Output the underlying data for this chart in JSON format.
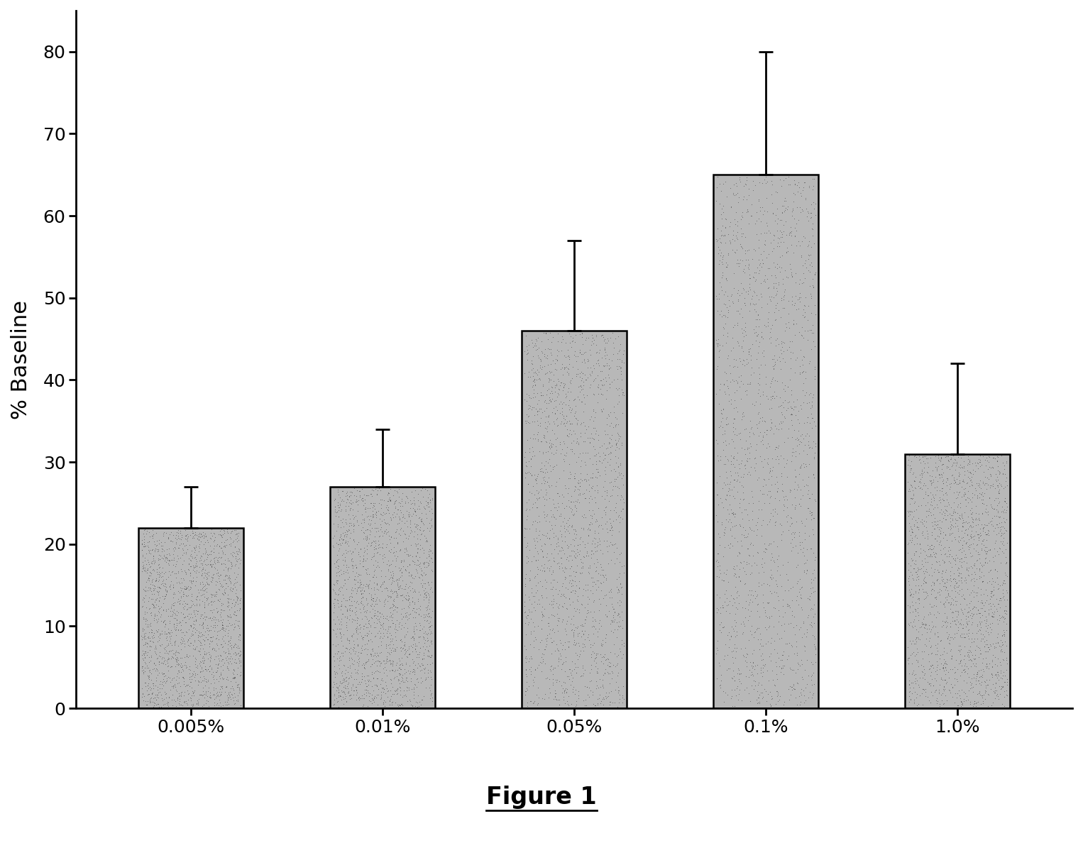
{
  "categories": [
    "0.005%",
    "0.01%",
    "0.05%",
    "0.1%",
    "1.0%"
  ],
  "values": [
    22,
    27,
    46,
    65,
    31
  ],
  "errors": [
    5,
    7,
    11,
    15,
    11
  ],
  "bar_color": "#b8b8b8",
  "bar_edgecolor": "#000000",
  "ylabel": "% Baseline",
  "ylim": [
    0,
    85
  ],
  "yticks": [
    0,
    10,
    20,
    30,
    40,
    50,
    60,
    70,
    80
  ],
  "title": "Figure 1",
  "title_fontsize": 24,
  "ylabel_fontsize": 22,
  "tick_fontsize": 18,
  "bar_width": 0.55,
  "figure_width": 15.26,
  "figure_height": 11.95,
  "background_color": "#ffffff",
  "capsize": 7
}
